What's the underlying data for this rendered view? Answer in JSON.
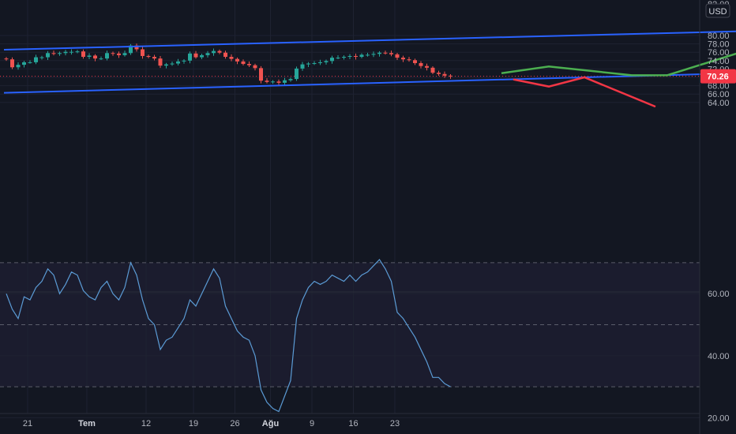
{
  "currency": "USD",
  "price_axis": {
    "top_clipped_label": "82.00",
    "ticks": [
      "80.00",
      "78.00",
      "76.00",
      "74.00",
      "72.00",
      "68.00",
      "66.00",
      "64.00"
    ],
    "tick_values": [
      80,
      78,
      76,
      74,
      72,
      68,
      66,
      64
    ]
  },
  "last_price": {
    "label": "70.26",
    "value": 70.26,
    "color": "#f23645"
  },
  "rsi_axis": {
    "ticks": [
      "60.00",
      "40.00",
      "20.00"
    ],
    "tick_values": [
      60,
      40,
      20
    ],
    "upper_band": 70,
    "lower_band": 30,
    "mid_line": 50
  },
  "time_axis": {
    "labels": [
      "21",
      "Tem",
      "12",
      "19",
      "26",
      "Ağu",
      "9",
      "16",
      "23"
    ],
    "bold": [
      false,
      true,
      false,
      false,
      false,
      true,
      false,
      false,
      false
    ],
    "index": [
      0,
      10,
      20,
      28,
      35,
      41,
      48,
      55,
      62
    ]
  },
  "colors": {
    "background": "#131722",
    "up_candle": "#26a69a",
    "down_candle": "#ef5350",
    "channel_line": "#2962ff",
    "bullish_projection": "#4caf50",
    "bearish_projection": "#f23645",
    "rsi_line": "#5b9bd5",
    "rsi_band_fill": "#7e57c2"
  },
  "chart_data": {
    "type": "candlestick",
    "candles": {
      "close": [
        74.3,
        72.4,
        73.0,
        73.6,
        73.6,
        74.8,
        74.8,
        75.8,
        75.6,
        75.8,
        76.1,
        76.1,
        76.2,
        74.9,
        75.2,
        74.5,
        74.5,
        75.8,
        75.7,
        75.3,
        75.8,
        77.6,
        76.7,
        75.1,
        74.9,
        74.5,
        72.8,
        73.1,
        73.3,
        73.8,
        74.0,
        75.7,
        74.8,
        75.3,
        75.8,
        76.3,
        75.9,
        74.9,
        74.4,
        73.8,
        73.2,
        72.9,
        72.2,
        69.2,
        68.9,
        69.0,
        68.7,
        69.3,
        69.6,
        72.1,
        73.1,
        73.3,
        73.4,
        73.6,
        73.9,
        74.7,
        74.7,
        74.9,
        75.1,
        74.9,
        75.4,
        75.4,
        75.6,
        75.9,
        75.8,
        75.5,
        74.7,
        74.3,
        74.1,
        73.4,
        72.7,
        72.3,
        71.1,
        70.8,
        70.4,
        70.3
      ],
      "open_from_previous_close": true,
      "first_open": 74.5
    },
    "channel_upper": [
      {
        "x": 0,
        "y": 76.6
      },
      {
        "x": 138,
        "y": 81.5
      }
    ],
    "channel_lower": [
      {
        "x": 0,
        "y": 66.3
      },
      {
        "x": 138,
        "y": 71.5
      }
    ],
    "projection_bullish": [
      {
        "x": 84,
        "y": 71.0
      },
      {
        "x": 92,
        "y": 72.6
      },
      {
        "x": 106,
        "y": 70.5
      },
      {
        "x": 112,
        "y": 70.5
      },
      {
        "x": 128,
        "y": 77.6
      }
    ],
    "projection_bearish": [
      {
        "x": 86,
        "y": 69.5
      },
      {
        "x": 92,
        "y": 67.8
      },
      {
        "x": 98,
        "y": 70.0
      },
      {
        "x": 110,
        "y": 63.0
      }
    ],
    "rsi": [
      60,
      55,
      52,
      59,
      58,
      62,
      64,
      68,
      66,
      60,
      63,
      67,
      66,
      61,
      59,
      58,
      62,
      64,
      60,
      58,
      62,
      70,
      66,
      58,
      52,
      50,
      42,
      45,
      46,
      49,
      52,
      58,
      56,
      60,
      64,
      68,
      65,
      56,
      52,
      48,
      46,
      45,
      40,
      29,
      25,
      23,
      22,
      27,
      32,
      52,
      58,
      62,
      64,
      63,
      64,
      66,
      65,
      64,
      66,
      64,
      66,
      67,
      69,
      71,
      68,
      64,
      54,
      52,
      49,
      46,
      42,
      38,
      33,
      33,
      31,
      30
    ]
  }
}
